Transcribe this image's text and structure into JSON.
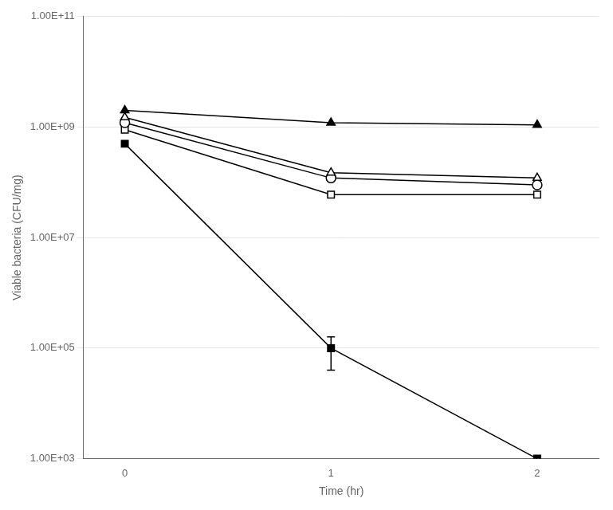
{
  "chart_data": {
    "type": "line",
    "x": [
      0,
      1,
      2
    ],
    "xlabel": "Time (hr)",
    "ylabel": "Viable bacteria (CFU/mg)",
    "xlim": [
      -0.2,
      2.3
    ],
    "xticks": [
      0,
      1,
      2
    ],
    "ylim": [
      1000.0,
      100000000000.0
    ],
    "log": "y",
    "yticks": [
      {
        "value": 1000.0,
        "label": "1.00E+03"
      },
      {
        "value": 100000.0,
        "label": "1.00E+05"
      },
      {
        "value": 10000000.0,
        "label": "1.00E+07"
      },
      {
        "value": 1000000000.0,
        "label": "1.00E+09"
      },
      {
        "value": 100000000000.0,
        "label": "1.00E+11"
      }
    ],
    "grid": "y",
    "series": [
      {
        "color": "black",
        "marker": "filled_triangle",
        "values": [
          2000000000.0,
          1200000000.0,
          1100000000.0
        ]
      },
      {
        "color": "black",
        "marker": "open_triangle",
        "values": [
          1500000000.0,
          150000000.0,
          120000000.0
        ]
      },
      {
        "color": "black",
        "marker": "open_circle",
        "values": [
          1200000000.0,
          120000000.0,
          90000000.0
        ]
      },
      {
        "color": "black",
        "marker": "open_square",
        "values": [
          900000000.0,
          60000000.0,
          60000000.0
        ]
      },
      {
        "color": "black",
        "marker": "filled_square",
        "values": [
          500000000.0,
          100000.0,
          1000.0
        ],
        "yerr": [
          null,
          60000.0,
          null
        ]
      }
    ]
  }
}
